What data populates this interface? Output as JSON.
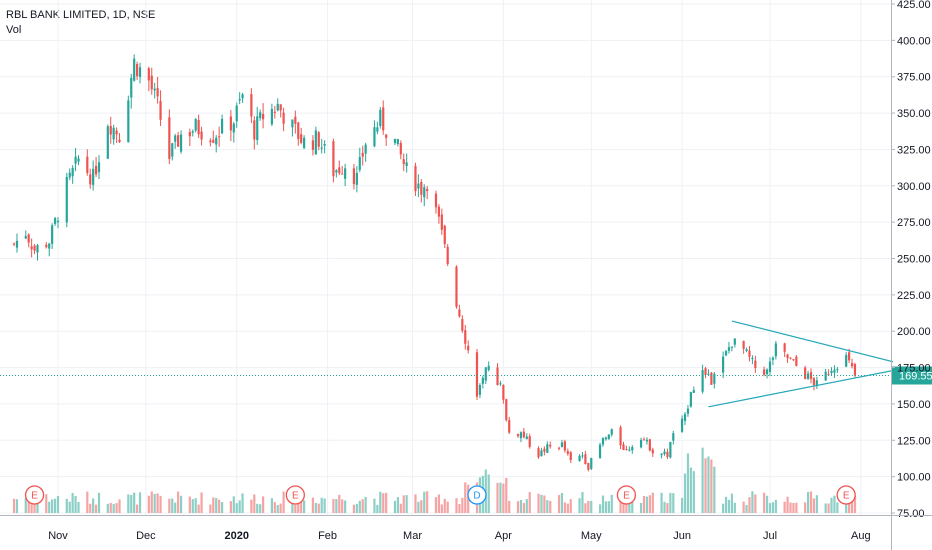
{
  "header": {
    "symbol_line": "RBL BANK LIMITED, 1D, NSE",
    "indicator_label": "Vol"
  },
  "colors": {
    "up": "#26a69a",
    "down": "#ef5350",
    "up_volume": "#8ccfc6",
    "down_volume": "#f5a3a3",
    "grid": "#eef1f5",
    "axis": "#b2b5be",
    "trendline": "#22a8b8",
    "last_price": "#26a69a",
    "event_earnings": "#ef5350",
    "event_dividend": "#2196f3"
  },
  "chart_data": {
    "type": "candlestick",
    "y_axis": {
      "ylim": [
        75,
        425
      ],
      "ticks": [
        "75.00",
        "100.00",
        "125.00",
        "150.00",
        "175.00",
        "200.00",
        "225.00",
        "250.00",
        "275.00",
        "300.00",
        "325.00",
        "350.00",
        "375.00",
        "400.00",
        "425.00"
      ]
    },
    "x_axis": {
      "ticks": [
        {
          "label": "Nov",
          "date": "2019-11-01"
        },
        {
          "label": "Dec",
          "date": "2019-12-01"
        },
        {
          "label": "2020",
          "date": "2020-01-01",
          "bold": true
        },
        {
          "label": "Feb",
          "date": "2020-02-01"
        },
        {
          "label": "Mar",
          "date": "2020-03-01"
        },
        {
          "label": "Apr",
          "date": "2020-04-01"
        },
        {
          "label": "May",
          "date": "2020-05-01"
        },
        {
          "label": "Jun",
          "date": "2020-06-01"
        },
        {
          "label": "Jul",
          "date": "2020-07-01"
        },
        {
          "label": "Aug",
          "date": "2020-08-01"
        }
      ]
    },
    "last_price": {
      "value": 169.55,
      "label": "169.55"
    },
    "price_anchors": [
      [
        "2019-10-17",
        260
      ],
      [
        "2019-10-21",
        268
      ],
      [
        "2019-10-24",
        256
      ],
      [
        "2019-10-29",
        262
      ],
      [
        "2019-11-04",
        300
      ],
      [
        "2019-11-08",
        318
      ],
      [
        "2019-11-13",
        305
      ],
      [
        "2019-11-18",
        345
      ],
      [
        "2019-11-22",
        335
      ],
      [
        "2019-11-27",
        385
      ],
      [
        "2019-12-02",
        372
      ],
      [
        "2019-12-05",
        355
      ],
      [
        "2019-12-09",
        320
      ],
      [
        "2019-12-13",
        335
      ],
      [
        "2019-12-18",
        340
      ],
      [
        "2019-12-24",
        335
      ],
      [
        "2019-12-31",
        345
      ],
      [
        "2020-01-03",
        362
      ],
      [
        "2020-01-07",
        338
      ],
      [
        "2020-01-10",
        348
      ],
      [
        "2020-01-15",
        355
      ],
      [
        "2020-01-20",
        340
      ],
      [
        "2020-01-24",
        330
      ],
      [
        "2020-01-29",
        332
      ],
      [
        "2020-02-03",
        310
      ],
      [
        "2020-02-07",
        315
      ],
      [
        "2020-02-11",
        305
      ],
      [
        "2020-02-14",
        330
      ],
      [
        "2020-02-19",
        345
      ],
      [
        "2020-02-24",
        330
      ],
      [
        "2020-02-28",
        310
      ],
      [
        "2020-03-04",
        298
      ],
      [
        "2020-03-06",
        303
      ],
      [
        "2020-03-10",
        275
      ],
      [
        "2020-03-16",
        220
      ],
      [
        "2020-03-19",
        195
      ],
      [
        "2020-03-23",
        158
      ],
      [
        "2020-03-25",
        165
      ],
      [
        "2020-03-27",
        178
      ],
      [
        "2020-03-31",
        162
      ],
      [
        "2020-04-03",
        130
      ],
      [
        "2020-04-07",
        130
      ],
      [
        "2020-04-13",
        115
      ],
      [
        "2020-04-16",
        120
      ],
      [
        "2020-04-21",
        122
      ],
      [
        "2020-04-24",
        110
      ],
      [
        "2020-04-28",
        115
      ],
      [
        "2020-04-30",
        107
      ],
      [
        "2020-05-05",
        125
      ],
      [
        "2020-05-08",
        130
      ],
      [
        "2020-05-13",
        118
      ],
      [
        "2020-05-18",
        128
      ],
      [
        "2020-05-22",
        118
      ],
      [
        "2020-05-27",
        115
      ],
      [
        "2020-05-29",
        130
      ],
      [
        "2020-06-02",
        140
      ],
      [
        "2020-06-04",
        160
      ],
      [
        "2020-06-08",
        172
      ],
      [
        "2020-06-11",
        165
      ],
      [
        "2020-06-15",
        180
      ],
      [
        "2020-06-18",
        193
      ],
      [
        "2020-06-22",
        187
      ],
      [
        "2020-06-26",
        175
      ],
      [
        "2020-06-30",
        172
      ],
      [
        "2020-07-03",
        188
      ],
      [
        "2020-07-08",
        180
      ],
      [
        "2020-07-13",
        170
      ],
      [
        "2020-07-17",
        163
      ],
      [
        "2020-07-22",
        175
      ],
      [
        "2020-07-27",
        182
      ],
      [
        "2020-07-30",
        169.55
      ]
    ],
    "trendlines": [
      {
        "name": "upper",
        "from": [
          "2020-06-18",
          207
        ],
        "to": [
          "2020-08-12",
          179
        ]
      },
      {
        "name": "lower",
        "from": [
          "2020-06-10",
          148
        ],
        "to": [
          "2020-08-12",
          173
        ]
      }
    ],
    "events": [
      {
        "type": "earnings",
        "label": "E",
        "date": "2019-10-24"
      },
      {
        "type": "earnings",
        "label": "E",
        "date": "2020-01-21"
      },
      {
        "type": "dividend",
        "label": "D",
        "date": "2020-03-23"
      },
      {
        "type": "earnings",
        "label": "E",
        "date": "2020-05-13"
      },
      {
        "type": "earnings",
        "label": "E",
        "date": "2020-07-27"
      }
    ]
  }
}
